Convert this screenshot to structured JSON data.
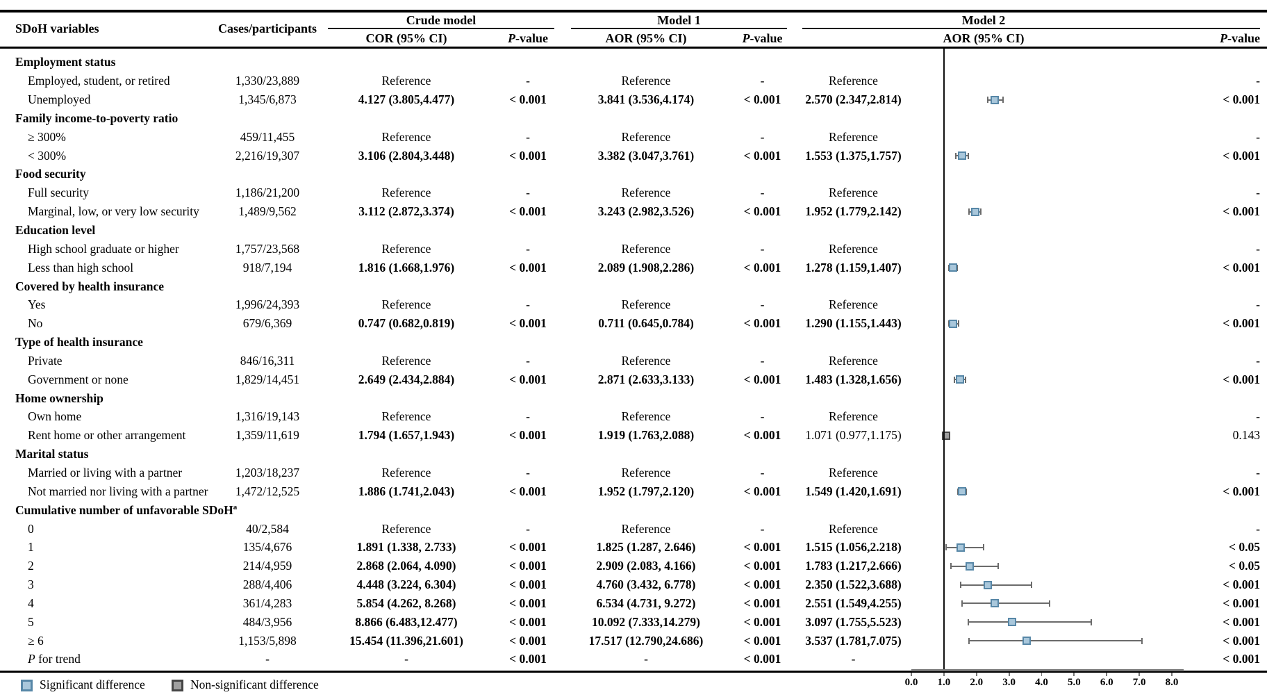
{
  "header": {
    "sdoh": "SDoH variables",
    "cases": "Cases/participants",
    "groups": [
      {
        "label": "Crude model"
      },
      {
        "label": "Model 1"
      },
      {
        "label": "Model 2"
      }
    ],
    "sub": {
      "cor": "COR (95% CI)",
      "aor": "AOR (95% CI)",
      "p_italic": "P",
      "p_rest": "-value"
    }
  },
  "rows": [
    {
      "t": "s",
      "label": "Employment status"
    },
    {
      "t": "r",
      "kind": "ref",
      "label": "Employed, student, or retired",
      "cells": [
        "1,330/23,889",
        "Reference",
        "-",
        "Reference",
        "-",
        "Reference",
        "-"
      ]
    },
    {
      "t": "r",
      "kind": "sig",
      "label": "Unemployed",
      "cells": [
        "1,345/6,873",
        "4.127 (3.805,4.477)",
        "< 0.001",
        "3.841 (3.536,4.174)",
        "< 0.001",
        "2.570 (2.347,2.814)",
        "< 0.001"
      ],
      "fp": {
        "est": 2.57,
        "lo": 2.347,
        "hi": 2.814,
        "sig": true
      }
    },
    {
      "t": "s",
      "label": "Family income-to-poverty ratio"
    },
    {
      "t": "r",
      "kind": "ref",
      "label": "≥ 300%",
      "cells": [
        "459/11,455",
        "Reference",
        "-",
        "Reference",
        "-",
        "Reference",
        "-"
      ]
    },
    {
      "t": "r",
      "kind": "sig",
      "label": "< 300%",
      "cells": [
        "2,216/19,307",
        "3.106 (2.804,3.448)",
        "< 0.001",
        "3.382 (3.047,3.761)",
        "< 0.001",
        "1.553 (1.375,1.757)",
        "< 0.001"
      ],
      "fp": {
        "est": 1.553,
        "lo": 1.375,
        "hi": 1.757,
        "sig": true
      }
    },
    {
      "t": "s",
      "label": "Food security"
    },
    {
      "t": "r",
      "kind": "ref",
      "label": "Full security",
      "cells": [
        "1,186/21,200",
        "Reference",
        "-",
        "Reference",
        "-",
        "Reference",
        "-"
      ]
    },
    {
      "t": "r",
      "kind": "sig",
      "label": "Marginal, low, or very low security",
      "cells": [
        "1,489/9,562",
        "3.112 (2.872,3.374)",
        "< 0.001",
        "3.243 (2.982,3.526)",
        "< 0.001",
        "1.952 (1.779,2.142)",
        "< 0.001"
      ],
      "fp": {
        "est": 1.952,
        "lo": 1.779,
        "hi": 2.142,
        "sig": true
      }
    },
    {
      "t": "s",
      "label": "Education level"
    },
    {
      "t": "r",
      "kind": "ref",
      "label": "High school graduate or higher",
      "cells": [
        "1,757/23,568",
        "Reference",
        "-",
        "Reference",
        "-",
        "Reference",
        "-"
      ]
    },
    {
      "t": "r",
      "kind": "sig",
      "label": "Less than high school",
      "cells": [
        "918/7,194",
        "1.816 (1.668,1.976)",
        "< 0.001",
        "2.089 (1.908,2.286)",
        "< 0.001",
        "1.278 (1.159,1.407)",
        "< 0.001"
      ],
      "fp": {
        "est": 1.278,
        "lo": 1.159,
        "hi": 1.407,
        "sig": true
      }
    },
    {
      "t": "s",
      "label": "Covered by health insurance"
    },
    {
      "t": "r",
      "kind": "ref",
      "label": "Yes",
      "cells": [
        "1,996/24,393",
        "Reference",
        "-",
        "Reference",
        "-",
        "Reference",
        "-"
      ]
    },
    {
      "t": "r",
      "kind": "sig",
      "label": "No",
      "cells": [
        "679/6,369",
        "0.747 (0.682,0.819)",
        "< 0.001",
        "0.711 (0.645,0.784)",
        "< 0.001",
        "1.290 (1.155,1.443)",
        "< 0.001"
      ],
      "fp": {
        "est": 1.29,
        "lo": 1.155,
        "hi": 1.443,
        "sig": true
      }
    },
    {
      "t": "s",
      "label": "Type of health insurance"
    },
    {
      "t": "r",
      "kind": "ref",
      "label": "Private",
      "cells": [
        "846/16,311",
        "Reference",
        "-",
        "Reference",
        "-",
        "Reference",
        "-"
      ]
    },
    {
      "t": "r",
      "kind": "sig",
      "label": "Government or none",
      "cells": [
        "1,829/14,451",
        "2.649 (2.434,2.884)",
        "< 0.001",
        "2.871 (2.633,3.133)",
        "< 0.001",
        "1.483 (1.328,1.656)",
        "< 0.001"
      ],
      "fp": {
        "est": 1.483,
        "lo": 1.328,
        "hi": 1.656,
        "sig": true
      }
    },
    {
      "t": "s",
      "label": "Home ownership"
    },
    {
      "t": "r",
      "kind": "ref",
      "label": "Own home",
      "cells": [
        "1,316/19,143",
        "Reference",
        "-",
        "Reference",
        "-",
        "Reference",
        "-"
      ]
    },
    {
      "t": "r",
      "kind": "sig",
      "plain_m2": true,
      "label": "Rent home or other arrangement",
      "cells": [
        "1,359/11,619",
        "1.794 (1.657,1.943)",
        "< 0.001",
        "1.919 (1.763,2.088)",
        "< 0.001",
        "1.071 (0.977,1.175)",
        "0.143"
      ],
      "fp": {
        "est": 1.071,
        "lo": 0.977,
        "hi": 1.175,
        "sig": false
      }
    },
    {
      "t": "s",
      "label": "Marital status"
    },
    {
      "t": "r",
      "kind": "ref",
      "label": "Married or living with a partner",
      "cells": [
        "1,203/18,237",
        "Reference",
        "-",
        "Reference",
        "-",
        "Reference",
        "-"
      ]
    },
    {
      "t": "r",
      "kind": "sig",
      "label": "Not married nor living with a partner",
      "cells": [
        "1,472/12,525",
        "1.886 (1.741,2.043)",
        "< 0.001",
        "1.952 (1.797,2.120)",
        "< 0.001",
        "1.549 (1.420,1.691)",
        "< 0.001"
      ],
      "fp": {
        "est": 1.549,
        "lo": 1.42,
        "hi": 1.691,
        "sig": true
      }
    },
    {
      "t": "s",
      "label": "Cumulative number of unfavorable SDoH",
      "sup": "a"
    },
    {
      "t": "r",
      "kind": "ref",
      "label": "0",
      "cells": [
        "40/2,584",
        "Reference",
        "-",
        "Reference",
        "-",
        "Reference",
        "-"
      ]
    },
    {
      "t": "r",
      "kind": "sig",
      "label": "1",
      "cells": [
        "135/4,676",
        "1.891 (1.338, 2.733)",
        "< 0.001",
        "1.825 (1.287, 2.646)",
        "< 0.001",
        "1.515 (1.056,2.218)",
        "< 0.05"
      ],
      "fp": {
        "est": 1.515,
        "lo": 1.056,
        "hi": 2.218,
        "sig": true
      }
    },
    {
      "t": "r",
      "kind": "sig",
      "label": "2",
      "cells": [
        "214/4,959",
        "2.868 (2.064, 4.090)",
        "< 0.001",
        "2.909 (2.083, 4.166)",
        "< 0.001",
        "1.783 (1.217,2.666)",
        "< 0.05"
      ],
      "fp": {
        "est": 1.783,
        "lo": 1.217,
        "hi": 2.666,
        "sig": true
      }
    },
    {
      "t": "r",
      "kind": "sig",
      "label": "3",
      "cells": [
        "288/4,406",
        "4.448 (3.224, 6.304)",
        "< 0.001",
        "4.760 (3.432, 6.778)",
        "< 0.001",
        "2.350 (1.522,3.688)",
        "< 0.001"
      ],
      "fp": {
        "est": 2.35,
        "lo": 1.522,
        "hi": 3.688,
        "sig": true
      }
    },
    {
      "t": "r",
      "kind": "sig",
      "label": "4",
      "cells": [
        "361/4,283",
        "5.854 (4.262, 8.268)",
        "< 0.001",
        "6.534 (4.731, 9.272)",
        "< 0.001",
        "2.551 (1.549,4.255)",
        "< 0.001"
      ],
      "fp": {
        "est": 2.551,
        "lo": 1.549,
        "hi": 4.255,
        "sig": true
      }
    },
    {
      "t": "r",
      "kind": "sig",
      "label": "5",
      "cells": [
        "484/3,956",
        "8.866 (6.483,12.477)",
        "< 0.001",
        "10.092 (7.333,14.279)",
        "< 0.001",
        "3.097 (1.755,5.523)",
        "< 0.001"
      ],
      "fp": {
        "est": 3.097,
        "lo": 1.755,
        "hi": 5.523,
        "sig": true
      }
    },
    {
      "t": "r",
      "kind": "sig",
      "label": "≥ 6",
      "cells": [
        "1,153/5,898",
        "15.454 (11.396,21.601)",
        "< 0.001",
        "17.517 (12.790,24.686)",
        "< 0.001",
        "3.537 (1.781,7.075)",
        "< 0.001"
      ],
      "fp": {
        "est": 3.537,
        "lo": 1.781,
        "hi": 7.075,
        "sig": true
      }
    },
    {
      "t": "t",
      "kind": "trend",
      "label_p": "P",
      "label_rest": " for trend",
      "cells": [
        "-",
        "-",
        "< 0.001",
        "-",
        "< 0.001",
        "-",
        "< 0.001"
      ]
    }
  ],
  "axis": {
    "labels": [
      "0.0",
      "1.0",
      "2.0",
      "3.0",
      "4.0",
      "5.0",
      "6.0",
      "7.0",
      "8.0"
    ],
    "min": 0,
    "max": 8,
    "refline": 1.0
  },
  "legend": [
    {
      "label": "Significant difference"
    },
    {
      "label": "Non-significant difference"
    }
  ],
  "colors": {
    "sig_fill": "#a9c7db",
    "sig_border": "#5787a7",
    "nsig_fill": "#9f9f9f",
    "nsig_border": "#454545",
    "whisker": "#6b6b6b",
    "refline": "#111111",
    "axis": "#777777"
  },
  "chart_data": {
    "type": "scatter",
    "subtype": "forest-plot",
    "title": "Model 2 AOR (95% CI) forest plot",
    "xlabel": "AOR (95% CI)",
    "xlim": [
      0,
      8
    ],
    "x_ticks": [
      0.0,
      1.0,
      2.0,
      3.0,
      4.0,
      5.0,
      6.0,
      7.0,
      8.0
    ],
    "reference_line_x": 1.0,
    "grid": false,
    "legend_position": "bottom-left",
    "series": [
      {
        "name": "Model 2 AOR",
        "points": [
          {
            "category": "Unemployed",
            "est": 2.57,
            "lo": 2.347,
            "hi": 2.814,
            "p": "< 0.001",
            "significant": true
          },
          {
            "category": "< 300%",
            "est": 1.553,
            "lo": 1.375,
            "hi": 1.757,
            "p": "< 0.001",
            "significant": true
          },
          {
            "category": "Marginal, low, or very low security",
            "est": 1.952,
            "lo": 1.779,
            "hi": 2.142,
            "p": "< 0.001",
            "significant": true
          },
          {
            "category": "Less than high school",
            "est": 1.278,
            "lo": 1.159,
            "hi": 1.407,
            "p": "< 0.001",
            "significant": true
          },
          {
            "category": "No (health insurance)",
            "est": 1.29,
            "lo": 1.155,
            "hi": 1.443,
            "p": "< 0.001",
            "significant": true
          },
          {
            "category": "Government or none",
            "est": 1.483,
            "lo": 1.328,
            "hi": 1.656,
            "p": "< 0.001",
            "significant": true
          },
          {
            "category": "Rent home or other arrangement",
            "est": 1.071,
            "lo": 0.977,
            "hi": 1.175,
            "p": "0.143",
            "significant": false
          },
          {
            "category": "Not married nor living with a partner",
            "est": 1.549,
            "lo": 1.42,
            "hi": 1.691,
            "p": "< 0.001",
            "significant": true
          },
          {
            "category": "Cumulative SDoH = 1",
            "est": 1.515,
            "lo": 1.056,
            "hi": 2.218,
            "p": "< 0.05",
            "significant": true
          },
          {
            "category": "Cumulative SDoH = 2",
            "est": 1.783,
            "lo": 1.217,
            "hi": 2.666,
            "p": "< 0.05",
            "significant": true
          },
          {
            "category": "Cumulative SDoH = 3",
            "est": 2.35,
            "lo": 1.522,
            "hi": 3.688,
            "p": "< 0.001",
            "significant": true
          },
          {
            "category": "Cumulative SDoH = 4",
            "est": 2.551,
            "lo": 1.549,
            "hi": 4.255,
            "p": "< 0.001",
            "significant": true
          },
          {
            "category": "Cumulative SDoH = 5",
            "est": 3.097,
            "lo": 1.755,
            "hi": 5.523,
            "p": "< 0.001",
            "significant": true
          },
          {
            "category": "Cumulative SDoH ≥ 6",
            "est": 3.537,
            "lo": 1.781,
            "hi": 7.075,
            "p": "< 0.001",
            "significant": true
          }
        ]
      }
    ]
  }
}
